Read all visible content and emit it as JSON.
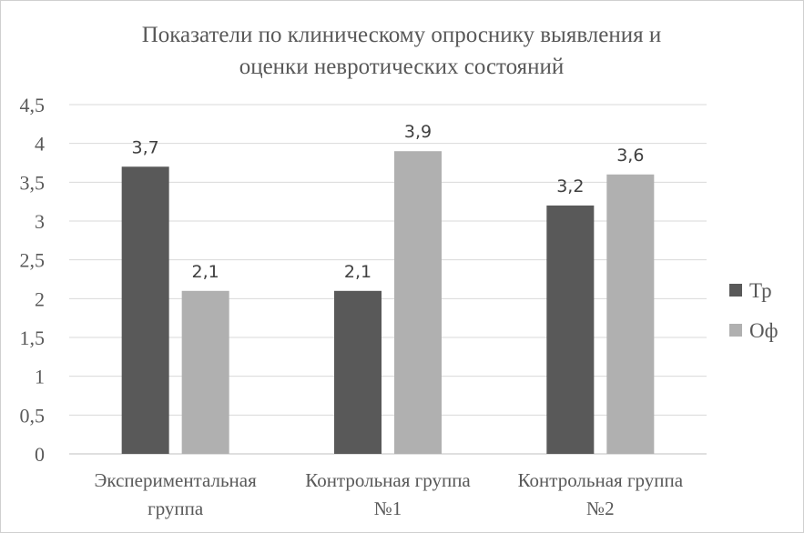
{
  "chart_data": {
    "type": "bar",
    "title_lines": [
      "Показатели по клиническому опроснику выявления и",
      "оценки невротических состояний"
    ],
    "categories": [
      [
        "Экспериментальная",
        "группа"
      ],
      [
        "Контрольная группа",
        "№1"
      ],
      [
        "Контрольная группа",
        "№2"
      ]
    ],
    "series": [
      {
        "name": "Тр",
        "values": [
          3.7,
          2.1,
          3.2
        ],
        "labels": [
          "3,7",
          "2,1",
          "3,2"
        ],
        "color": "#595959"
      },
      {
        "name": "Оф",
        "values": [
          2.1,
          3.9,
          3.6
        ],
        "labels": [
          "2,1",
          "3,9",
          "3,6"
        ],
        "color": "#b0b0b0"
      }
    ],
    "ylim": [
      0,
      4.5
    ],
    "yticks": [
      0,
      0.5,
      1,
      1.5,
      2,
      2.5,
      3,
      3.5,
      4,
      4.5
    ],
    "ytick_labels": [
      "0",
      "0,5",
      "1",
      "1,5",
      "2",
      "2,5",
      "3",
      "3,5",
      "4",
      "4,5"
    ],
    "grid": true,
    "legend_position": "right"
  }
}
